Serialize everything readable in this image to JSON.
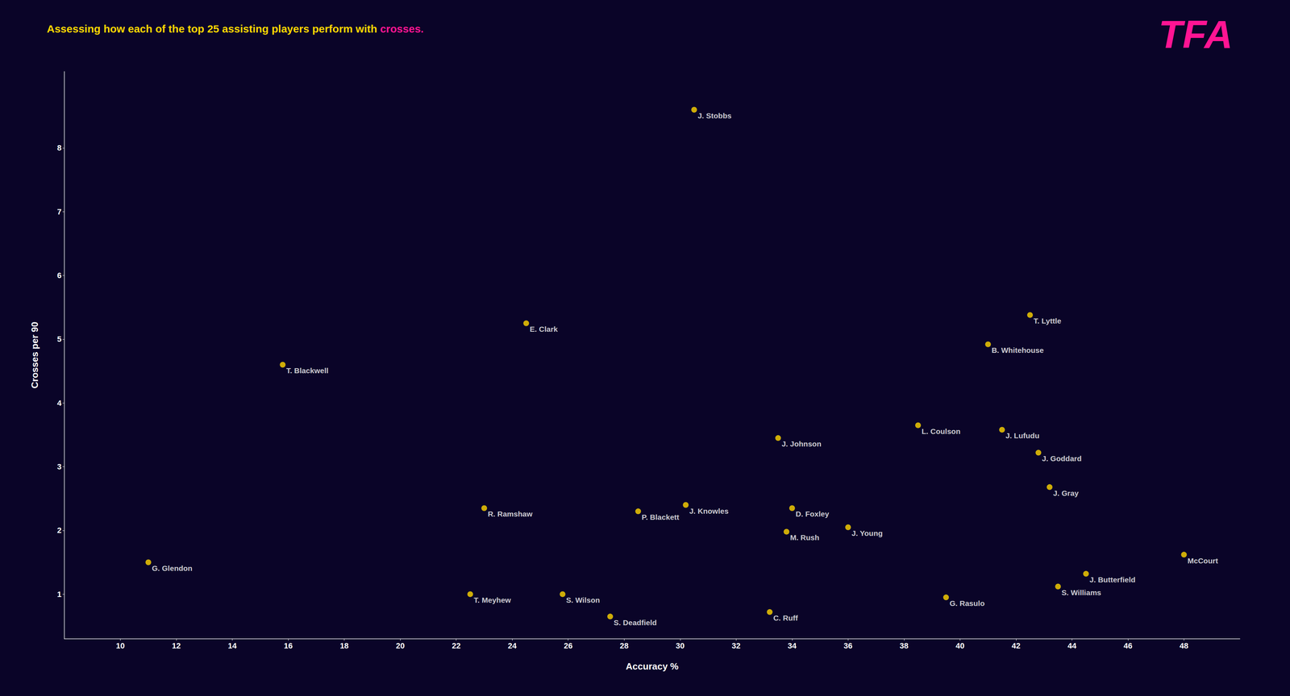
{
  "chart_data": {
    "type": "scatter",
    "title": "Assessing how each of the top 25 assisting players perform with crosses.",
    "xlabel": "Accuracy %",
    "ylabel": "Crosses per 90",
    "color": "#FFD700",
    "grid": false,
    "xlim": [
      8,
      50
    ],
    "ylim": [
      0.3,
      9.2
    ],
    "xticks": [
      10,
      12,
      14,
      16,
      18,
      20,
      22,
      24,
      26,
      28,
      30,
      32,
      34,
      36,
      38,
      40,
      42,
      44,
      46,
      48
    ],
    "yticks": [
      1,
      2,
      3,
      4,
      5,
      6,
      7,
      8
    ],
    "labels": [
      "G. Glendon",
      "T. Blackwell",
      "R. Ramshaw",
      "T. Meyhew",
      "E. Clark",
      "S. Wilson",
      "S. Deadfield",
      "P. Blackett",
      "J. Knowles",
      "J. Stobbs",
      "C. Ruff",
      "D. Foxley",
      "M. Rush",
      "J. Johnson",
      "J. Young",
      "L. Coulson",
      "G. Rasulo",
      "B. Whitehouse",
      "J. Lufudu",
      "T. Lyttle",
      "J. Goddard",
      "J. Gray",
      "S. Williams",
      "J. Butterfield",
      "McCourt"
    ],
    "x": [
      11.0,
      15.8,
      23.0,
      22.5,
      24.5,
      25.8,
      27.5,
      28.5,
      30.2,
      30.5,
      33.2,
      34.0,
      33.8,
      33.5,
      36.0,
      38.5,
      39.5,
      41.0,
      41.5,
      42.5,
      42.8,
      43.2,
      43.5,
      44.5,
      48.0
    ],
    "values": [
      1.5,
      4.6,
      2.35,
      1.0,
      5.25,
      1.0,
      0.65,
      2.3,
      2.4,
      8.6,
      0.72,
      2.35,
      1.98,
      3.45,
      2.05,
      3.65,
      0.95,
      4.92,
      3.58,
      5.38,
      3.22,
      2.68,
      1.12,
      1.32,
      1.62
    ],
    "annotations": [
      {
        "text": "TFA",
        "color": "#FF1493"
      }
    ]
  }
}
